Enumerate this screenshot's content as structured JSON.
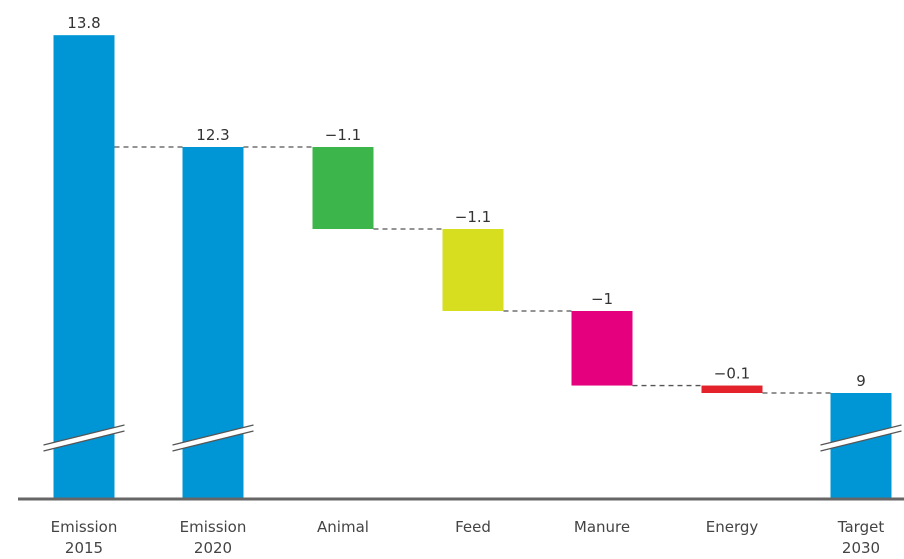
{
  "chart_data": {
    "type": "bar",
    "subtype": "waterfall",
    "categories": [
      {
        "line1": "Emission",
        "line2": "2015"
      },
      {
        "line1": "Emission",
        "line2": "2020"
      },
      {
        "line1": "Animal",
        "line2": ""
      },
      {
        "line1": "Feed",
        "line2": ""
      },
      {
        "line1": "Manure",
        "line2": ""
      },
      {
        "line1": "Energy",
        "line2": ""
      },
      {
        "line1": "Target",
        "line2": "2030"
      }
    ],
    "bars": [
      {
        "kind": "total",
        "value": 13.8,
        "label": "13.8",
        "color": "#0096d6",
        "broken": true
      },
      {
        "kind": "total",
        "value": 12.3,
        "label": "12.3",
        "color": "#0096d6",
        "broken": true
      },
      {
        "kind": "delta",
        "value": -1.1,
        "label": "−1.1",
        "color": "#3cb64a",
        "broken": false
      },
      {
        "kind": "delta",
        "value": -1.1,
        "label": "−1.1",
        "color": "#d6de1f",
        "broken": false
      },
      {
        "kind": "delta",
        "value": -1,
        "label": "−1",
        "color": "#e5007e",
        "broken": false
      },
      {
        "kind": "delta",
        "value": -0.1,
        "label": "−0.1",
        "color": "#e3222b",
        "broken": false
      },
      {
        "kind": "total",
        "value": 9,
        "label": "9",
        "color": "#0096d6",
        "broken": true
      }
    ],
    "axis_break": true,
    "grid": false,
    "legend": "none",
    "connector_style": "dashed",
    "axis_color": "#666666"
  }
}
